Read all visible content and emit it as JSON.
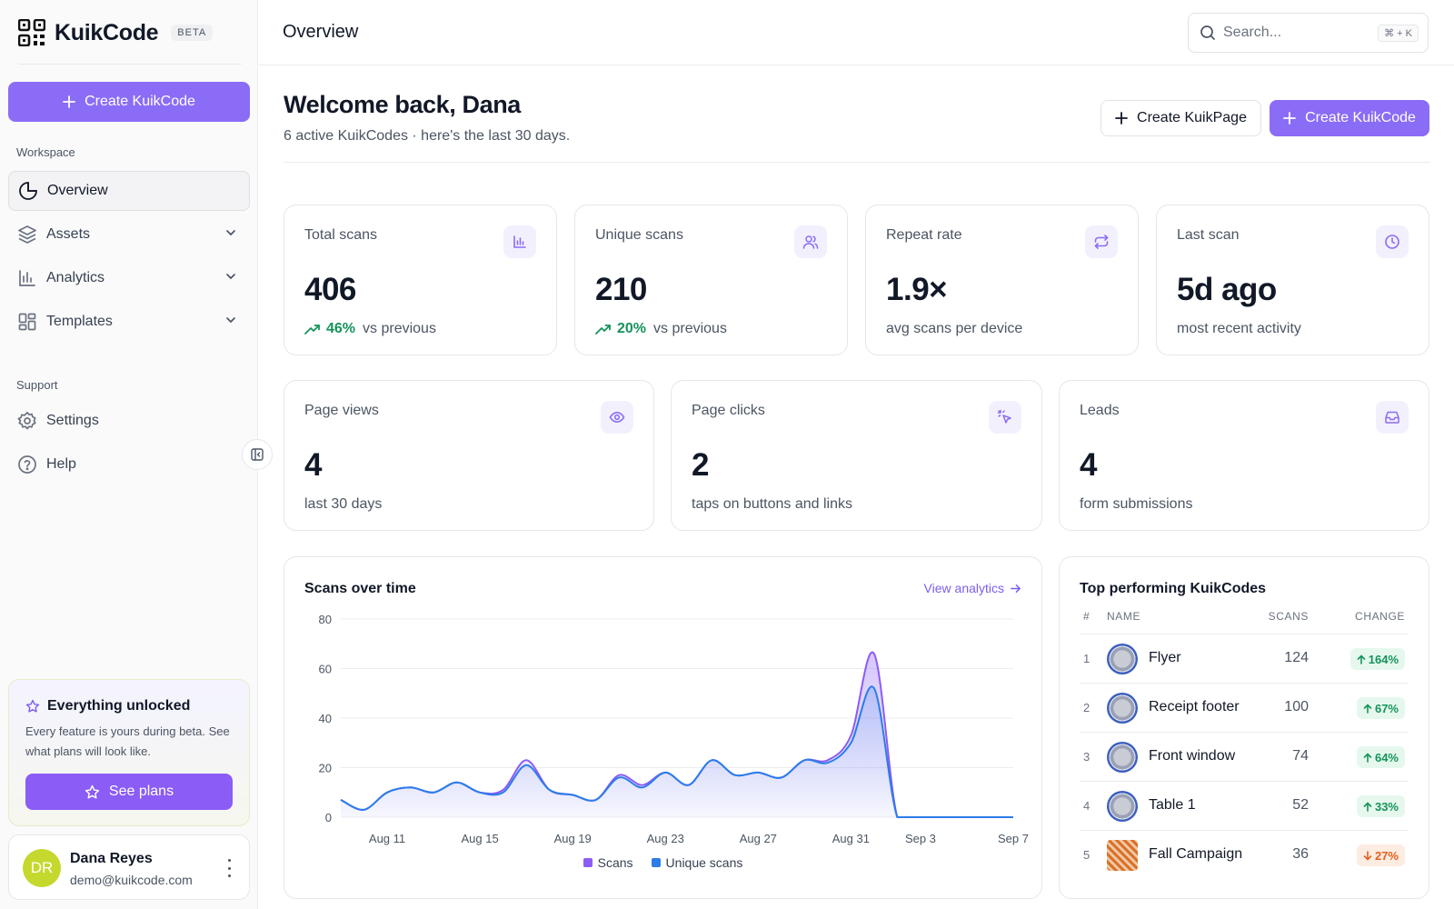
{
  "brand": {
    "name": "KuikCode",
    "badge": "BETA"
  },
  "sidebar": {
    "create_label": "Create KuikCode",
    "workspace_label": "Workspace",
    "items": [
      {
        "label": "Overview",
        "icon": "pie-chart-icon",
        "active": true
      },
      {
        "label": "Assets",
        "icon": "layers-icon"
      },
      {
        "label": "Analytics",
        "icon": "bar-chart-icon"
      },
      {
        "label": "Templates",
        "icon": "layout-grid-icon"
      }
    ],
    "support_label": "Support",
    "support_items": [
      {
        "label": "Settings",
        "icon": "gear-icon"
      },
      {
        "label": "Help",
        "icon": "help-circle-icon"
      }
    ],
    "unlock": {
      "title": "Everything unlocked",
      "text": "Every feature is yours during beta. See what plans will look like.",
      "button": "See plans"
    },
    "user": {
      "initials": "DR",
      "name": "Dana Reyes",
      "email": "demo@kuikcode.com"
    }
  },
  "topbar": {
    "title": "Overview",
    "search_placeholder": "Search...",
    "shortcut": "⌘ + K"
  },
  "main": {
    "welcome": "Welcome back, Dana",
    "subtitle": "6 active KuikCodes · here's the last 30 days.",
    "create_page_label": "Create KuikPage",
    "create_code_label": "Create KuikCode",
    "stats": [
      {
        "label": "Total scans",
        "value": "406",
        "pct": "46%",
        "sub": "vs previous",
        "icon": "bar-chart-icon"
      },
      {
        "label": "Unique scans",
        "value": "210",
        "pct": "20%",
        "sub": "vs previous",
        "icon": "users-icon"
      },
      {
        "label": "Repeat rate",
        "value": "1.9×",
        "sub": "avg scans per device",
        "icon": "repeat-icon"
      },
      {
        "label": "Last scan",
        "value": "5d ago",
        "sub": "most recent activity",
        "icon": "clock-icon"
      }
    ],
    "page_stats": [
      {
        "label": "Page views",
        "value": "4",
        "sub": "last 30 days",
        "icon": "eye-icon"
      },
      {
        "label": "Page clicks",
        "value": "2",
        "sub": "taps on buttons and links",
        "icon": "pointer-click-icon"
      },
      {
        "label": "Leads",
        "value": "4",
        "sub": "form submissions",
        "icon": "inbox-icon"
      }
    ],
    "chart_title": "Scans over time",
    "chart_link": "View analytics",
    "top": {
      "title": "Top performing KuikCodes",
      "headers": [
        "#",
        "NAME",
        "SCANS",
        "CHANGE"
      ],
      "rows": [
        {
          "rank": "1",
          "name": "Flyer",
          "scans": "124",
          "change": "164%",
          "dir": "up"
        },
        {
          "rank": "2",
          "name": "Receipt footer",
          "scans": "100",
          "change": "67%",
          "dir": "up"
        },
        {
          "rank": "3",
          "name": "Front window",
          "scans": "74",
          "change": "64%",
          "dir": "up"
        },
        {
          "rank": "4",
          "name": "Table 1",
          "scans": "52",
          "change": "33%",
          "dir": "up"
        },
        {
          "rank": "5",
          "name": "Fall Campaign",
          "scans": "36",
          "change": "27%",
          "dir": "down"
        }
      ]
    }
  },
  "colors": {
    "accent": "#8b6cf6",
    "scans": "#8b5cf6",
    "unique": "#2b7de9",
    "up": "#15935a",
    "down": "#e4601a"
  },
  "chart_data": {
    "type": "area",
    "x_ticks": [
      "Aug 11",
      "Aug 15",
      "Aug 19",
      "Aug 23",
      "Aug 27",
      "Aug 31",
      "Sep 3",
      "Sep 7"
    ],
    "ylim": [
      0,
      80
    ],
    "y_ticks": [
      0,
      20,
      40,
      60,
      80
    ],
    "grid": true,
    "legend_position": "bottom",
    "x": [
      "Aug 9",
      "Aug 10",
      "Aug 11",
      "Aug 12",
      "Aug 13",
      "Aug 14",
      "Aug 15",
      "Aug 16",
      "Aug 17",
      "Aug 18",
      "Aug 19",
      "Aug 20",
      "Aug 21",
      "Aug 22",
      "Aug 23",
      "Aug 24",
      "Aug 25",
      "Aug 26",
      "Aug 27",
      "Aug 28",
      "Aug 29",
      "Aug 30",
      "Aug 31",
      "Sep 1",
      "Sep 2",
      "Sep 3",
      "Sep 4",
      "Sep 5",
      "Sep 6",
      "Sep 7"
    ],
    "series": [
      {
        "name": "Scans",
        "values": [
          7,
          3,
          10,
          12,
          10,
          14,
          10,
          11,
          23,
          11,
          9,
          7,
          17,
          13,
          18,
          13,
          23,
          17,
          18,
          16,
          23,
          23,
          33,
          66,
          0,
          0,
          0,
          0,
          0,
          0
        ]
      },
      {
        "name": "Unique scans",
        "values": [
          7,
          3,
          10,
          12,
          10,
          14,
          10,
          10,
          21,
          11,
          9,
          7,
          16,
          12,
          18,
          13,
          23,
          17,
          18,
          16,
          23,
          22,
          30,
          52,
          0,
          0,
          0,
          0,
          0,
          0
        ]
      }
    ]
  }
}
